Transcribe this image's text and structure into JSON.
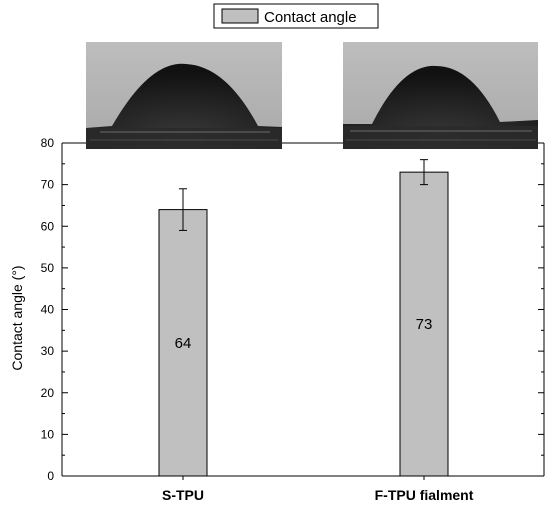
{
  "chart_data": {
    "type": "bar",
    "categories": [
      "S-TPU",
      "F-TPU fialment"
    ],
    "series": [
      {
        "name": "Contact angle",
        "values": [
          64,
          73
        ],
        "errors": [
          5,
          3
        ]
      }
    ],
    "data_labels": [
      "64",
      "73"
    ],
    "ylabel": "Contact angle (°)",
    "ylim": [
      0,
      80
    ],
    "yticks": [
      0,
      10,
      20,
      30,
      40,
      50,
      60,
      70,
      80
    ],
    "grid": false,
    "legend_position": "top-center",
    "colors": {
      "bar_fill": "#c0c0c0",
      "bar_stroke": "#000000",
      "axis": "#000000"
    },
    "inset_images": [
      {
        "subject": "water-droplet-on-S-TPU"
      },
      {
        "subject": "water-droplet-on-F-TPU-fialment"
      }
    ]
  }
}
